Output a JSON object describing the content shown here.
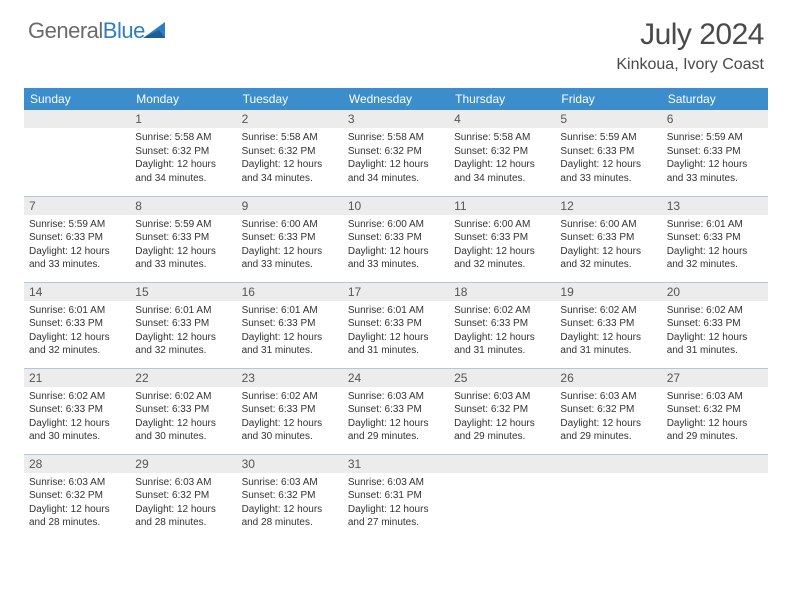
{
  "logo": {
    "part1": "General",
    "part2": "Blue"
  },
  "title": "July 2024",
  "location": "Kinkoua, Ivory Coast",
  "colors": {
    "header_bg": "#3c8dcc",
    "daynum_bg": "#ececec",
    "border": "#b0c8db",
    "logo_gray": "#6b6b6b",
    "logo_blue": "#2f7dc4"
  },
  "weekdays": [
    "Sunday",
    "Monday",
    "Tuesday",
    "Wednesday",
    "Thursday",
    "Friday",
    "Saturday"
  ],
  "weeks": [
    [
      null,
      {
        "n": "1",
        "sr": "5:58 AM",
        "ss": "6:32 PM",
        "dm": "34"
      },
      {
        "n": "2",
        "sr": "5:58 AM",
        "ss": "6:32 PM",
        "dm": "34"
      },
      {
        "n": "3",
        "sr": "5:58 AM",
        "ss": "6:32 PM",
        "dm": "34"
      },
      {
        "n": "4",
        "sr": "5:58 AM",
        "ss": "6:32 PM",
        "dm": "34"
      },
      {
        "n": "5",
        "sr": "5:59 AM",
        "ss": "6:33 PM",
        "dm": "33"
      },
      {
        "n": "6",
        "sr": "5:59 AM",
        "ss": "6:33 PM",
        "dm": "33"
      }
    ],
    [
      {
        "n": "7",
        "sr": "5:59 AM",
        "ss": "6:33 PM",
        "dm": "33"
      },
      {
        "n": "8",
        "sr": "5:59 AM",
        "ss": "6:33 PM",
        "dm": "33"
      },
      {
        "n": "9",
        "sr": "6:00 AM",
        "ss": "6:33 PM",
        "dm": "33"
      },
      {
        "n": "10",
        "sr": "6:00 AM",
        "ss": "6:33 PM",
        "dm": "33"
      },
      {
        "n": "11",
        "sr": "6:00 AM",
        "ss": "6:33 PM",
        "dm": "32"
      },
      {
        "n": "12",
        "sr": "6:00 AM",
        "ss": "6:33 PM",
        "dm": "32"
      },
      {
        "n": "13",
        "sr": "6:01 AM",
        "ss": "6:33 PM",
        "dm": "32"
      }
    ],
    [
      {
        "n": "14",
        "sr": "6:01 AM",
        "ss": "6:33 PM",
        "dm": "32"
      },
      {
        "n": "15",
        "sr": "6:01 AM",
        "ss": "6:33 PM",
        "dm": "32"
      },
      {
        "n": "16",
        "sr": "6:01 AM",
        "ss": "6:33 PM",
        "dm": "31"
      },
      {
        "n": "17",
        "sr": "6:01 AM",
        "ss": "6:33 PM",
        "dm": "31"
      },
      {
        "n": "18",
        "sr": "6:02 AM",
        "ss": "6:33 PM",
        "dm": "31"
      },
      {
        "n": "19",
        "sr": "6:02 AM",
        "ss": "6:33 PM",
        "dm": "31"
      },
      {
        "n": "20",
        "sr": "6:02 AM",
        "ss": "6:33 PM",
        "dm": "31"
      }
    ],
    [
      {
        "n": "21",
        "sr": "6:02 AM",
        "ss": "6:33 PM",
        "dm": "30"
      },
      {
        "n": "22",
        "sr": "6:02 AM",
        "ss": "6:33 PM",
        "dm": "30"
      },
      {
        "n": "23",
        "sr": "6:02 AM",
        "ss": "6:33 PM",
        "dm": "30"
      },
      {
        "n": "24",
        "sr": "6:03 AM",
        "ss": "6:33 PM",
        "dm": "29"
      },
      {
        "n": "25",
        "sr": "6:03 AM",
        "ss": "6:32 PM",
        "dm": "29"
      },
      {
        "n": "26",
        "sr": "6:03 AM",
        "ss": "6:32 PM",
        "dm": "29"
      },
      {
        "n": "27",
        "sr": "6:03 AM",
        "ss": "6:32 PM",
        "dm": "29"
      }
    ],
    [
      {
        "n": "28",
        "sr": "6:03 AM",
        "ss": "6:32 PM",
        "dm": "28"
      },
      {
        "n": "29",
        "sr": "6:03 AM",
        "ss": "6:32 PM",
        "dm": "28"
      },
      {
        "n": "30",
        "sr": "6:03 AM",
        "ss": "6:32 PM",
        "dm": "28"
      },
      {
        "n": "31",
        "sr": "6:03 AM",
        "ss": "6:31 PM",
        "dm": "27"
      },
      null,
      null,
      null
    ]
  ],
  "labels": {
    "sunrise": "Sunrise:",
    "sunset": "Sunset:",
    "daylight_prefix": "Daylight: 12 hours and ",
    "daylight_suffix": " minutes."
  }
}
